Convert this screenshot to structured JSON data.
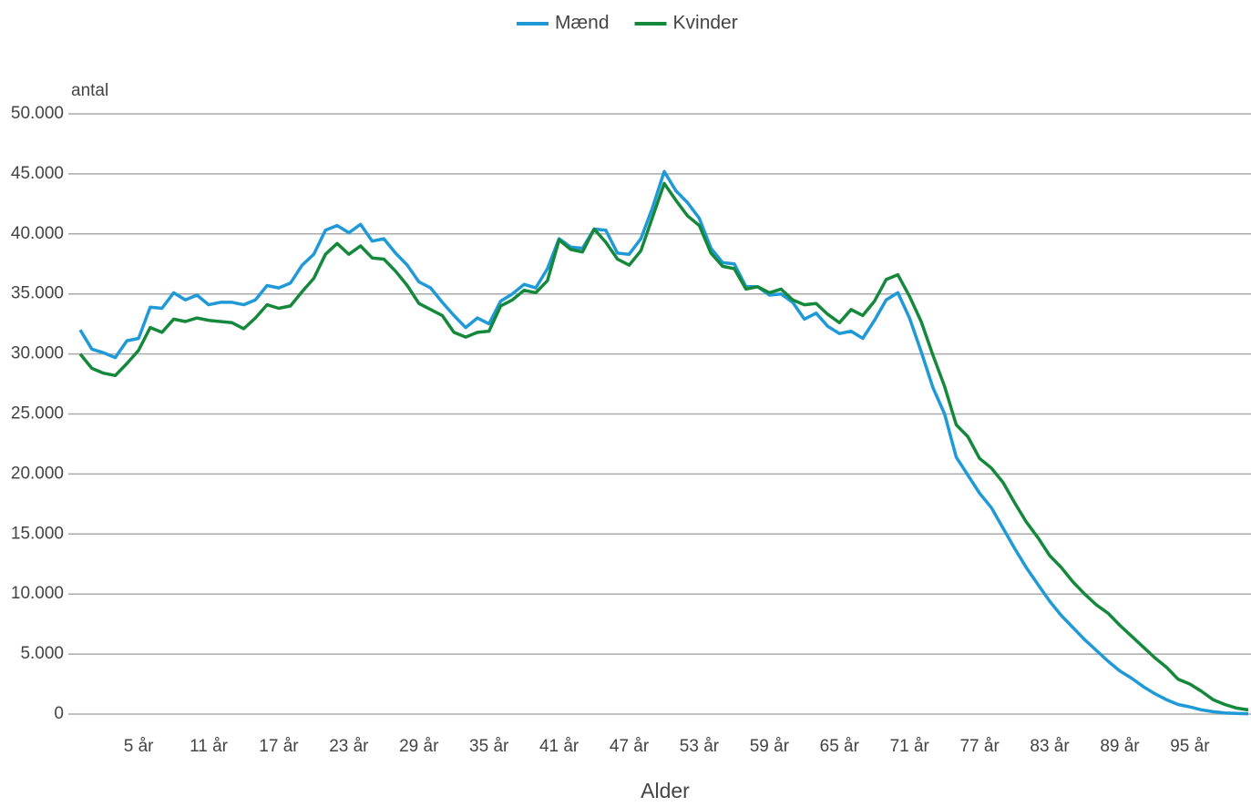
{
  "chart_data": {
    "type": "line",
    "x_label": "Alder",
    "y_label": "antal",
    "categories": [
      null,
      null,
      null,
      null,
      null,
      "5 år",
      null,
      null,
      null,
      null,
      null,
      "11 år",
      null,
      null,
      null,
      null,
      null,
      "17 år",
      null,
      null,
      null,
      null,
      null,
      "23 år",
      null,
      null,
      null,
      null,
      null,
      "29 år",
      null,
      null,
      null,
      null,
      null,
      "35 år",
      null,
      null,
      null,
      null,
      null,
      "41 år",
      null,
      null,
      null,
      null,
      null,
      "47 år",
      null,
      null,
      null,
      null,
      null,
      "53 år",
      null,
      null,
      null,
      null,
      null,
      "59 år",
      null,
      null,
      null,
      null,
      null,
      "65 år",
      null,
      null,
      null,
      null,
      null,
      "71 år",
      null,
      null,
      null,
      null,
      null,
      "77 år",
      null,
      null,
      null,
      null,
      null,
      "83 år",
      null,
      null,
      null,
      null,
      null,
      "89 år",
      null,
      null,
      null,
      null,
      null,
      "95 år",
      null,
      null,
      null,
      null,
      null
    ],
    "series": [
      {
        "name": "Mænd",
        "color": "#1f9ad6",
        "values": [
          32000,
          30400,
          30100,
          29700,
          31100,
          31300,
          33900,
          33800,
          35100,
          34500,
          34900,
          34100,
          34300,
          34300,
          34100,
          34500,
          35700,
          35500,
          35900,
          37400,
          38300,
          40300,
          40700,
          40100,
          40800,
          39400,
          39600,
          38400,
          37400,
          36000,
          35500,
          34300,
          33200,
          32200,
          33000,
          32500,
          34400,
          35000,
          35800,
          35500,
          37100,
          39600,
          38900,
          38800,
          40400,
          40300,
          38400,
          38300,
          39600,
          42200,
          45200,
          43600,
          42600,
          41300,
          38800,
          37600,
          37500,
          35600,
          35600,
          34900,
          35000,
          34300,
          32900,
          33400,
          32300,
          31700,
          31900,
          31300,
          32800,
          34500,
          35100,
          33000,
          30200,
          27200,
          25000,
          21400,
          19900,
          18400,
          17200,
          15500,
          13800,
          12200,
          10800,
          9400,
          8200,
          7200,
          6200,
          5300,
          4400,
          3600,
          3000,
          2300,
          1700,
          1200,
          800,
          600,
          350,
          200,
          100,
          50,
          30
        ]
      },
      {
        "name": "Kvinder",
        "color": "#15893b",
        "values": [
          30000,
          28800,
          28400,
          28200,
          29200,
          30300,
          32200,
          31800,
          32900,
          32700,
          33000,
          32800,
          32700,
          32600,
          32100,
          33000,
          34100,
          33800,
          34000,
          35200,
          36300,
          38300,
          39200,
          38300,
          39000,
          38000,
          37900,
          36900,
          35700,
          34200,
          33700,
          33200,
          31800,
          31400,
          31800,
          31900,
          34000,
          34500,
          35300,
          35100,
          36100,
          39500,
          38700,
          38500,
          40400,
          39300,
          37900,
          37400,
          38600,
          41400,
          44200,
          42800,
          41500,
          40700,
          38400,
          37300,
          37100,
          35400,
          35600,
          35100,
          35400,
          34500,
          34100,
          34200,
          33300,
          32600,
          33700,
          33200,
          34400,
          36200,
          36600,
          34800,
          32700,
          29900,
          27300,
          24100,
          23100,
          21300,
          20500,
          19300,
          17600,
          16000,
          14700,
          13200,
          12200,
          11000,
          10000,
          9100,
          8400,
          7400,
          6500,
          5600,
          4700,
          3900,
          2900,
          2500,
          1900,
          1200,
          800,
          500,
          350
        ]
      }
    ],
    "ylim": [
      0,
      50000
    ],
    "yticks": [
      0,
      {
        "value": 5000,
        "label": "5.000"
      },
      {
        "value": 10000,
        "label": "10.000"
      },
      {
        "value": 15000,
        "label": "15.000"
      },
      {
        "value": 20000,
        "label": "20.000"
      },
      {
        "value": 25000,
        "label": "25.000"
      },
      {
        "value": 30000,
        "label": "30.000"
      },
      {
        "value": 35000,
        "label": "35.000"
      },
      {
        "value": 40000,
        "label": "40.000"
      },
      {
        "value": 45000,
        "label": "45.000"
      },
      {
        "value": 50000,
        "label": "50.000"
      }
    ],
    "grid": true,
    "legend": "top"
  }
}
